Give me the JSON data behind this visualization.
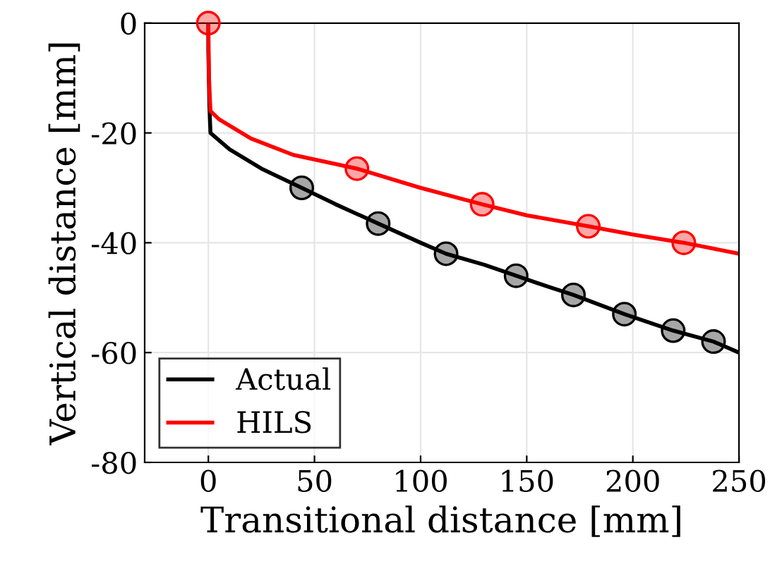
{
  "chart_data": {
    "type": "line",
    "xlabel": "Transitional distance [mm]",
    "ylabel": "Vertical distance [mm]",
    "xlim": [
      -30,
      250
    ],
    "xticks": [
      0,
      50,
      100,
      150,
      200,
      250
    ],
    "ylim": [
      -80,
      0
    ],
    "yticks": [
      -80,
      -60,
      -40,
      -20,
      0
    ],
    "grid": true,
    "legend": "bottom left",
    "line_style": "solid",
    "series": [
      {
        "name": "Actual",
        "color": "#000000",
        "marker": "none",
        "x": [
          0,
          0,
          0.5,
          1,
          10,
          25,
          44,
          60,
          80,
          100,
          112,
          130,
          145,
          160,
          172,
          196,
          219,
          238,
          250
        ],
        "values": [
          0,
          -5,
          -15,
          -20,
          -23,
          -26.5,
          -30,
          -33,
          -36.5,
          -40,
          -42,
          -44,
          -46,
          -48,
          -49.5,
          -53,
          -56,
          -58,
          -60
        ]
      },
      {
        "name": "HILS",
        "color": "#ff0000",
        "marker": "none",
        "x": [
          0,
          0.3,
          1,
          5,
          20,
          40,
          70,
          100,
          129,
          150,
          179,
          200,
          224,
          250
        ],
        "values": [
          0,
          -10,
          -16,
          -17.5,
          -21,
          -24,
          -26.5,
          -30,
          -33,
          -35,
          -37,
          -38.5,
          -40,
          -42
        ]
      },
      {
        "color": "#000000",
        "type": "scatter",
        "marker": "circle",
        "x": [
          44,
          80,
          112,
          145,
          172,
          196,
          219,
          238
        ],
        "values": [
          -30,
          -36.5,
          -42,
          -46,
          -49.5,
          -53,
          -56,
          -58
        ]
      },
      {
        "color": "#ff0000",
        "type": "scatter",
        "marker": "circle",
        "x": [
          0,
          70,
          129,
          179,
          224
        ],
        "values": [
          0,
          -26.5,
          -33,
          -37,
          -40
        ]
      }
    ]
  }
}
